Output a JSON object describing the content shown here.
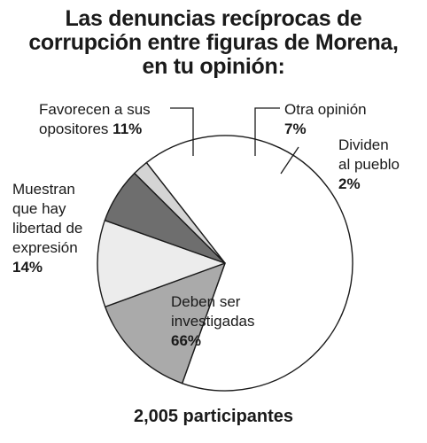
{
  "chart_data": {
    "type": "pie",
    "title_lines": [
      "Las denuncias recíprocas de",
      "corrupción entre figuras de Morena,",
      "en tu opinión:"
    ],
    "slices": [
      {
        "label_lines": [
          "Deben ser",
          "investigadas"
        ],
        "value": 66,
        "value_text": "66%",
        "color": "#ffffff"
      },
      {
        "label_lines": [
          "Muestran",
          "que hay",
          "libertad de",
          "expresión"
        ],
        "value": 14,
        "value_text": "14%",
        "color": "#aaaaaa"
      },
      {
        "label_lines": [
          "Favorecen a sus",
          "opositores"
        ],
        "value": 11,
        "value_text": "11%",
        "color": "#ececec"
      },
      {
        "label_lines": [
          "Otra opinión"
        ],
        "value": 7,
        "value_text": "7%",
        "color": "#6e6e6e"
      },
      {
        "label_lines": [
          "Dividen",
          "al pueblo"
        ],
        "value": 2,
        "value_text": "2%",
        "color": "#d4d4d4"
      }
    ],
    "footer": "2,005 participantes"
  }
}
